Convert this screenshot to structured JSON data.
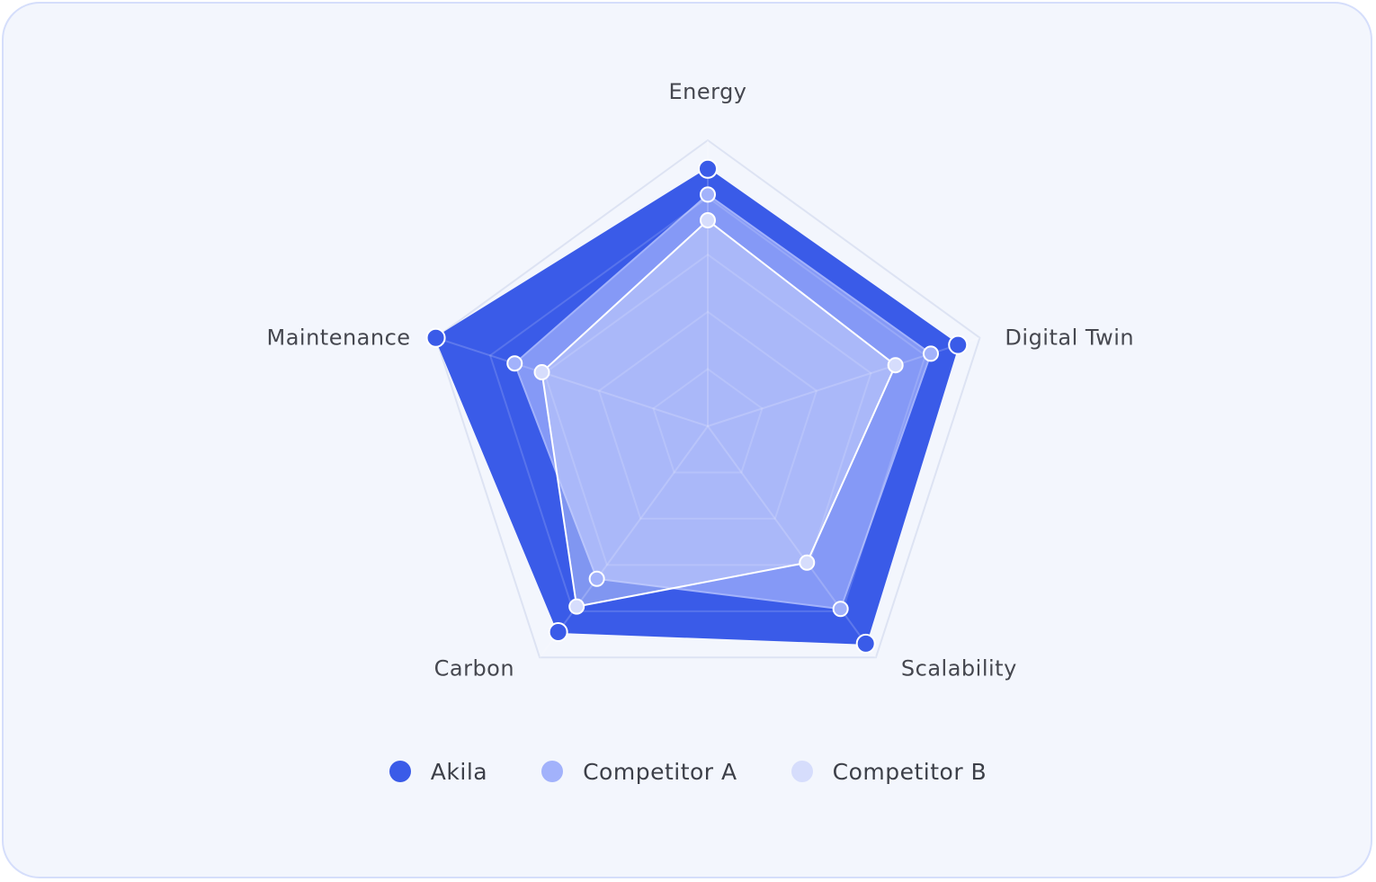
{
  "chart_data": {
    "type": "radar",
    "title": "",
    "axes": [
      "Energy",
      "Digital Twin",
      "Scalability",
      "Carbon",
      "Maintenance"
    ],
    "range": [
      0,
      100
    ],
    "grid_levels": 5,
    "series": [
      {
        "name": "Akila",
        "values": [
          90,
          92,
          94,
          89,
          100
        ],
        "color": "#3a5be8"
      },
      {
        "name": "Competitor A",
        "values": [
          81,
          82,
          79,
          66,
          71
        ],
        "color": "#a2b2fb"
      },
      {
        "name": "Competitor B",
        "values": [
          72,
          69,
          59,
          78,
          61
        ],
        "color": "#d6ddfc"
      }
    ],
    "legend_position": "bottom"
  }
}
